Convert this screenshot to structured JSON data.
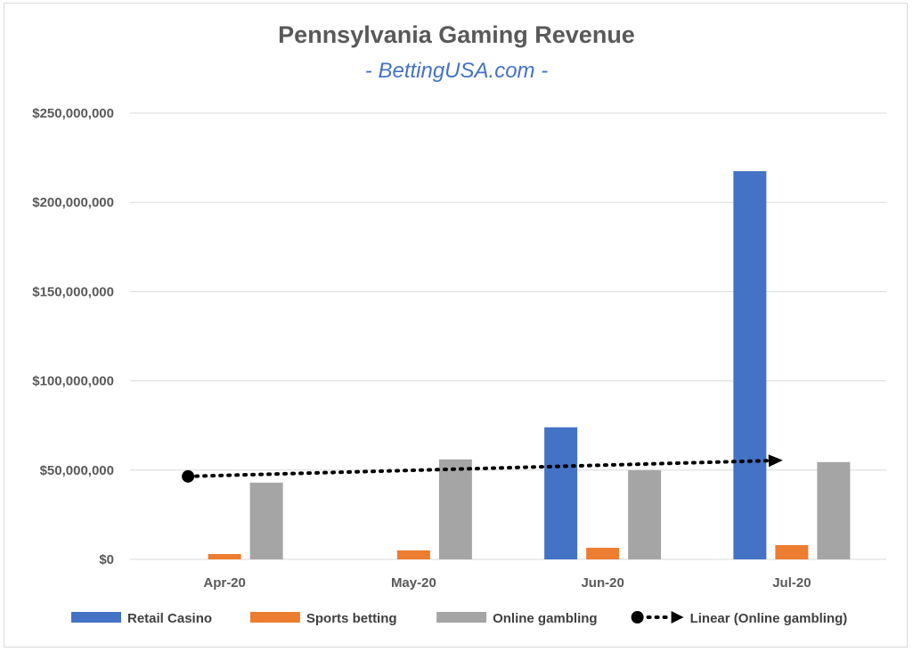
{
  "chart_data": {
    "type": "bar",
    "title": "Pennsylvania Gaming Revenue",
    "subtitle": "- BettingUSA.com -",
    "categories": [
      "Apr-20",
      "May-20",
      "Jun-20",
      "Jul-20"
    ],
    "ylim": [
      0,
      250000000
    ],
    "yticks": [
      0,
      50000000,
      100000000,
      150000000,
      200000000,
      250000000
    ],
    "ytick_labels": [
      "$0",
      "$50,000,000",
      "$100,000,000",
      "$150,000,000",
      "$200,000,000",
      "$250,000,000"
    ],
    "grid": true,
    "legend_position": "bottom",
    "series": [
      {
        "name": "Retail Casino",
        "color": "#4472c4",
        "values": [
          0,
          0,
          74000000,
          217500000
        ]
      },
      {
        "name": "Sports betting",
        "color": "#ed7d31",
        "values": [
          3000000,
          5000000,
          6500000,
          8000000
        ]
      },
      {
        "name": "Online gambling",
        "color": "#a5a5a5",
        "values": [
          43000000,
          56000000,
          50000000,
          54500000
        ]
      }
    ],
    "trendline": {
      "name": "Linear (Online gambling)",
      "type": "linear",
      "series": "Online gambling",
      "start": 46500000,
      "end": 55500000,
      "color": "#000000"
    }
  }
}
